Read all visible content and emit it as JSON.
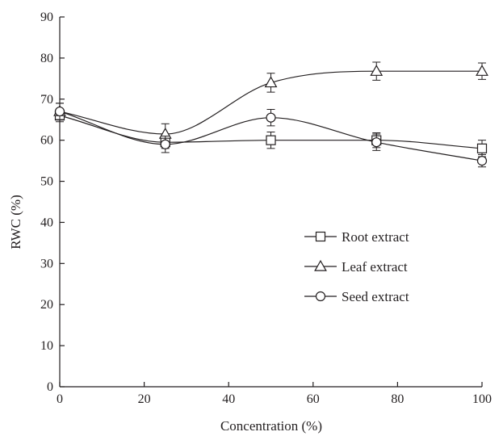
{
  "chart_data": {
    "type": "line",
    "title": "",
    "xlabel": "Concentration (%)",
    "ylabel": "RWC (%)",
    "xlim": [
      0,
      100
    ],
    "ylim": [
      0,
      90
    ],
    "x_ticks": [
      0,
      20,
      40,
      60,
      80,
      100
    ],
    "y_ticks": [
      0,
      10,
      20,
      30,
      40,
      50,
      60,
      70,
      80,
      90
    ],
    "grid": false,
    "legend_position": "center-right",
    "x": [
      0,
      25,
      50,
      75,
      100
    ],
    "series": [
      {
        "name": "Root extract",
        "marker": "square",
        "values": [
          66.0,
          59.5,
          60.0,
          60.0,
          58.0
        ],
        "errors": [
          1.5,
          1.5,
          2.0,
          1.8,
          2.0
        ]
      },
      {
        "name": "Leaf extract",
        "marker": "triangle",
        "values": [
          67.0,
          61.5,
          74.0,
          76.8,
          76.8
        ],
        "errors": [
          2.0,
          2.5,
          2.3,
          2.2,
          2.0
        ]
      },
      {
        "name": "Seed extract",
        "marker": "circle",
        "values": [
          67.0,
          59.0,
          65.5,
          59.5,
          55.0
        ],
        "errors": [
          2.0,
          2.0,
          2.0,
          2.0,
          1.5
        ]
      }
    ]
  }
}
